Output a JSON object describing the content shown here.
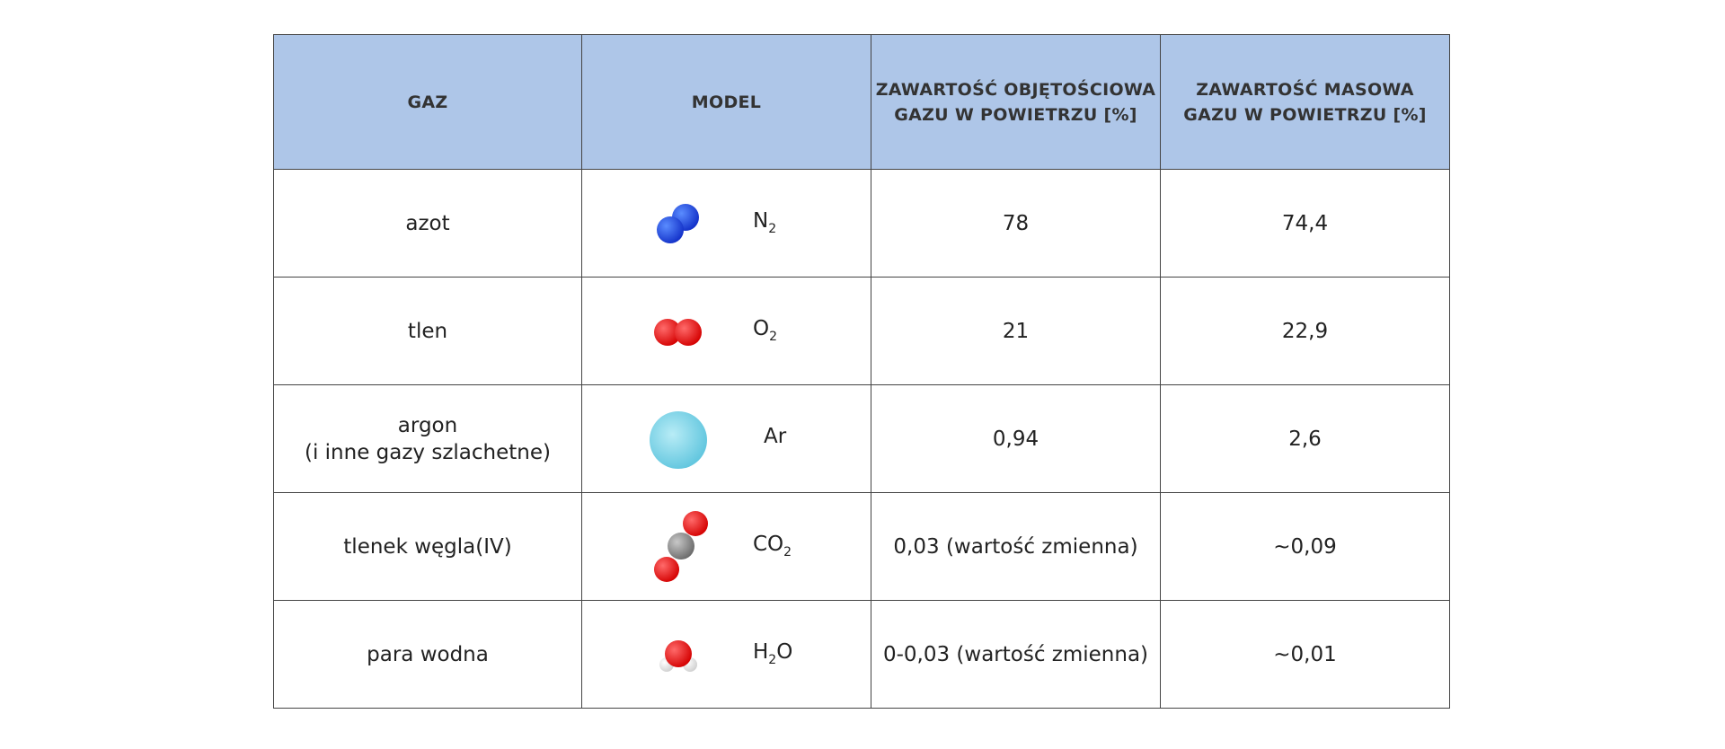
{
  "table": {
    "header": [
      {
        "lines": [
          "GAZ"
        ]
      },
      {
        "lines": [
          "MODEL"
        ]
      },
      {
        "lines": [
          "ZAWARTOŚĆ OBJĘTOŚCIOWA",
          "GAZU W POWIETRZU [%]"
        ]
      },
      {
        "lines": [
          "ZAWARTOŚĆ  MASOWA",
          "GAZU W POWIETRZU [%]"
        ]
      }
    ],
    "rows": [
      {
        "gas": [
          "azot"
        ],
        "formula": [
          {
            "text": "N"
          },
          {
            "sub": "2"
          }
        ],
        "volume": "78",
        "mass": "74,4"
      },
      {
        "gas": [
          "tlen"
        ],
        "formula": [
          {
            "text": "O"
          },
          {
            "sub": "2"
          }
        ],
        "volume": "21",
        "mass": "22,9"
      },
      {
        "gas": [
          "argon",
          "(i inne gazy szlachetne)"
        ],
        "formula": [
          {
            "text": "Ar"
          }
        ],
        "volume": "0,94",
        "mass": "2,6"
      },
      {
        "gas": [
          "tlenek węgla(IV)"
        ],
        "formula": [
          {
            "text": "CO"
          },
          {
            "sub": "2"
          }
        ],
        "volume": "0,03 (wartość zmienna)",
        "mass": "~0,09"
      },
      {
        "gas": [
          "para wodna"
        ],
        "formula": [
          {
            "text": "H"
          },
          {
            "sub": "2"
          },
          {
            "text": "O"
          }
        ],
        "volume": "0-0,03 (wartość zmienna)",
        "mass": "~0,01"
      }
    ]
  }
}
